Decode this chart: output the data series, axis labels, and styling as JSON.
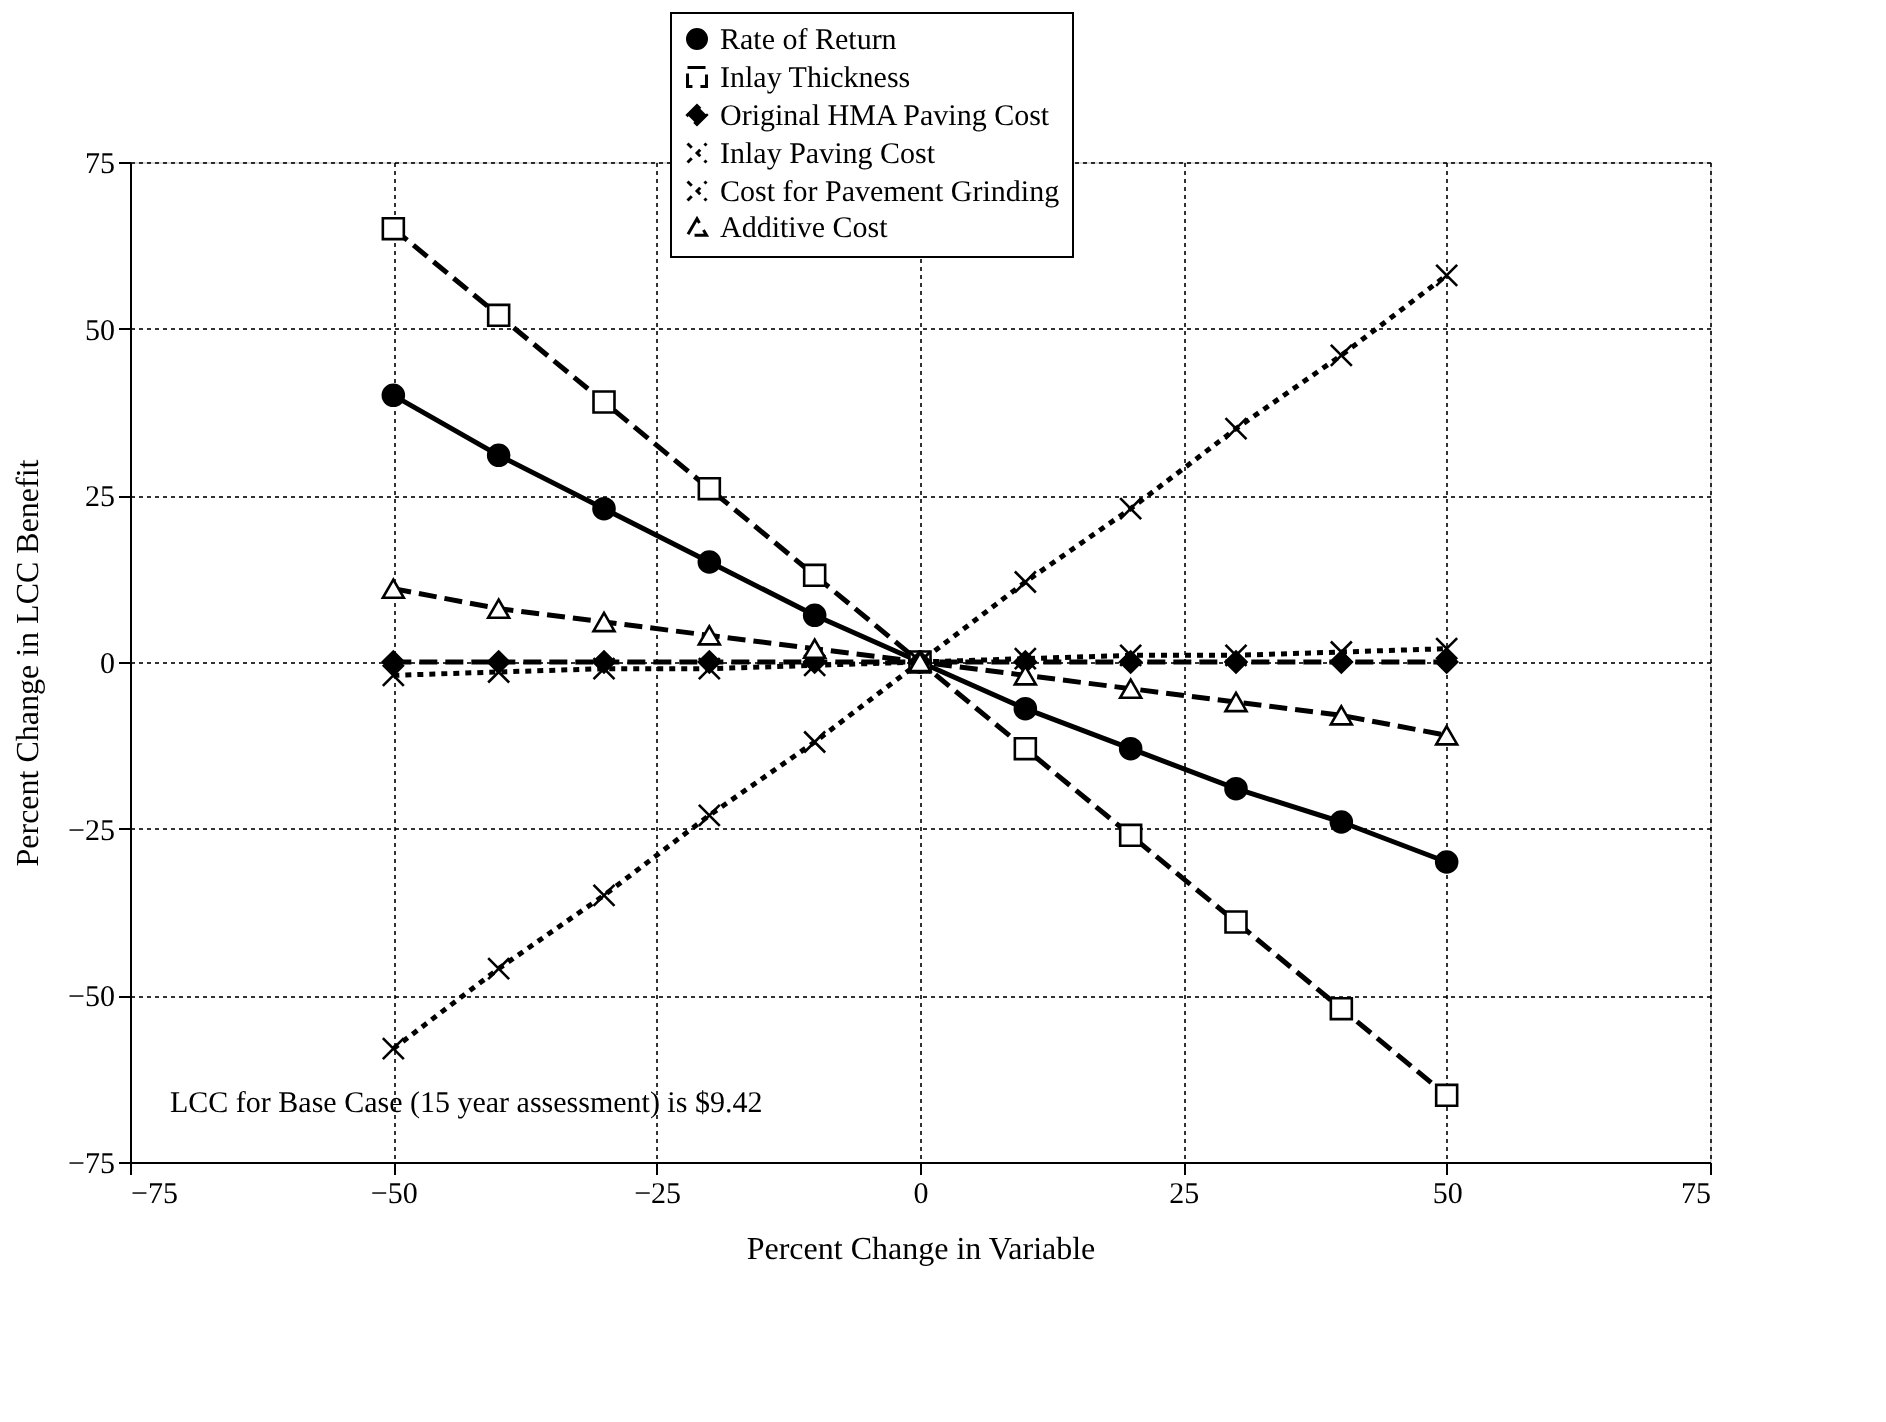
{
  "chart_data": {
    "type": "line",
    "xlabel": "Percent Change in Variable",
    "ylabel": "Percent Change in LCC Benefit",
    "x": [
      -50,
      -40,
      -30,
      -20,
      -10,
      0,
      10,
      20,
      30,
      40,
      50
    ],
    "series": [
      {
        "name": "Rate of Return",
        "color": "#000000",
        "marker": "circle",
        "line_style": "solid",
        "values": [
          40,
          31,
          23,
          15,
          7,
          0,
          -7,
          -13,
          -19,
          -24,
          -30
        ]
      },
      {
        "name": "Inlay Thickness",
        "color": "#000000",
        "marker": "square",
        "line_style": "dashed",
        "values": [
          65,
          52,
          39,
          26,
          13,
          0,
          -13,
          -26,
          -39,
          -52,
          -65
        ]
      },
      {
        "name": "Original HMA Paving Cost",
        "color": "#000000",
        "marker": "diamond",
        "line_style": "dashed",
        "values": [
          0,
          0,
          0,
          0,
          0,
          0,
          0,
          0,
          0,
          0,
          0
        ]
      },
      {
        "name": "Inlay Paving Cost",
        "color": "#000000",
        "marker": "cross",
        "line_style": "dotted",
        "values": [
          -58,
          -46,
          -35,
          -23,
          -12,
          0,
          12,
          23,
          35,
          46,
          58
        ]
      },
      {
        "name": "Cost for Pavement Grinding",
        "color": "#000000",
        "marker": "cross",
        "line_style": "dotted",
        "values": [
          -2,
          -1.5,
          -1,
          -1,
          -0.5,
          0,
          0.5,
          1,
          1,
          1.5,
          2
        ]
      },
      {
        "name": "Additive Cost",
        "color": "#000000",
        "marker": "triangle",
        "line_style": "dashed",
        "values": [
          11,
          8,
          6,
          4,
          2,
          0,
          -2,
          -4,
          -6,
          -8,
          -11
        ]
      }
    ],
    "xlim": [
      -75,
      75
    ],
    "xticks": [
      -75,
      -50,
      -25,
      0,
      25,
      50,
      75
    ],
    "ylim": [
      -75,
      75
    ],
    "yticks": [
      -75,
      -50,
      -25,
      0,
      25,
      50,
      75
    ],
    "grid": true,
    "legend": "top",
    "annotations": [
      "LCC for Base Case (15 year assessment) is $9.42"
    ]
  }
}
